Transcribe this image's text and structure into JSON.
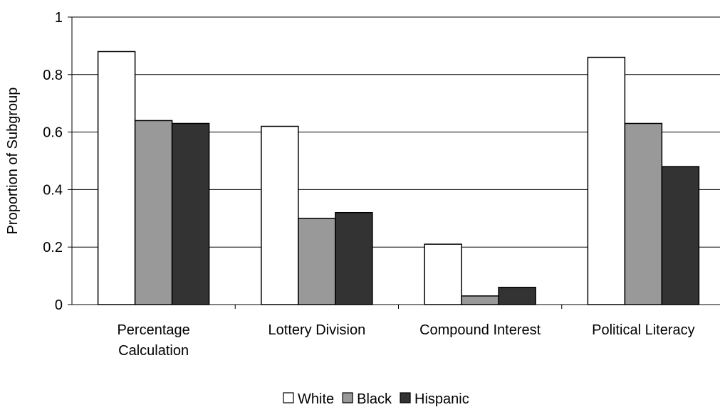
{
  "chart_data": {
    "type": "bar",
    "title": "",
    "xlabel": "",
    "ylabel": "Proportion of Subgroup",
    "ylim": [
      0,
      1
    ],
    "yticks": [
      "0",
      "0.2",
      "0.4",
      "0.6",
      "0.8",
      "1"
    ],
    "grid": true,
    "legend_position": "bottom",
    "categories": [
      [
        "Percentage",
        "Calculation"
      ],
      [
        "Lottery Division"
      ],
      [
        "Compound Interest"
      ],
      [
        "Political Literacy"
      ]
    ],
    "series": [
      {
        "name": "White",
        "color": "#ffffff",
        "values": [
          0.88,
          0.62,
          0.21,
          0.86
        ]
      },
      {
        "name": "Black",
        "color": "#999999",
        "values": [
          0.64,
          0.3,
          0.03,
          0.63
        ]
      },
      {
        "name": "Hispanic",
        "color": "#333333",
        "values": [
          0.63,
          0.32,
          0.06,
          0.48
        ]
      }
    ]
  }
}
